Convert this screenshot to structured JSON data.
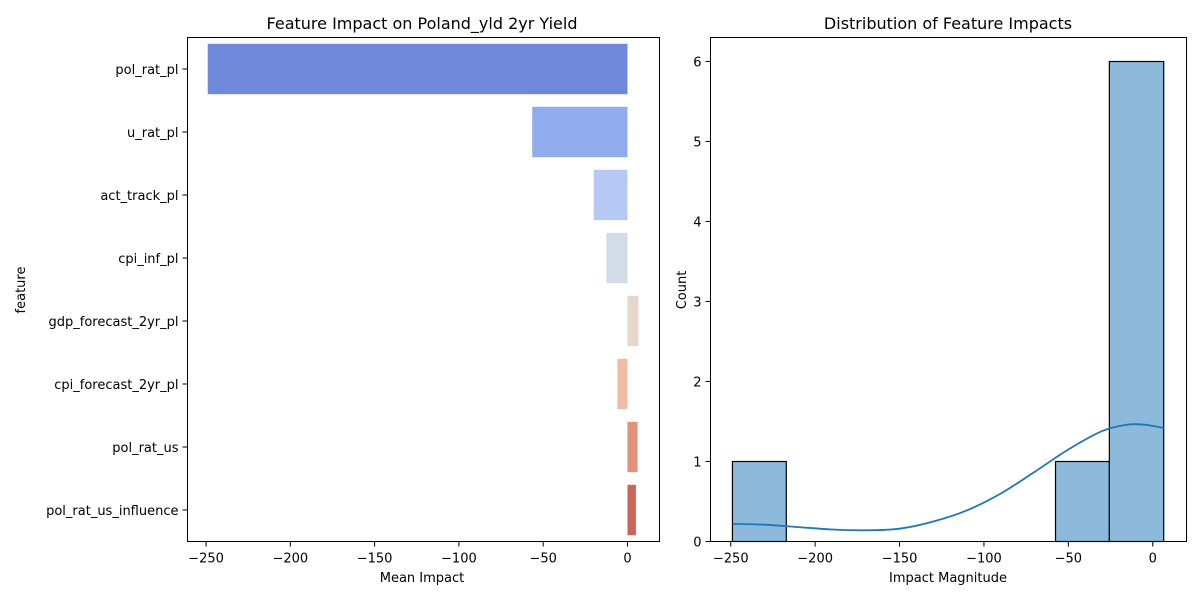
{
  "chart_data": [
    {
      "type": "bar",
      "orientation": "horizontal",
      "title": "Feature Impact on Poland_yld 2yr Yield",
      "xlabel": "Mean Impact",
      "ylabel": "feature",
      "categories": [
        "pol_rat_pl",
        "u_rat_pl",
        "act_track_pl",
        "cpi_inf_pl",
        "gdp_forecast_2yr_pl",
        "cpi_forecast_2yr_pl",
        "pol_rat_us",
        "pol_rat_us_influence"
      ],
      "values": [
        -249,
        -56.5,
        -20,
        -12.5,
        6.5,
        -6,
        6,
        5
      ],
      "colors": [
        "#6f88d9",
        "#91aced",
        "#b6c9f4",
        "#d3dbe9",
        "#e6d6cc",
        "#efbca4",
        "#e2917b",
        "#cc6459"
      ],
      "xlim": [
        -261,
        19
      ],
      "xticks": [
        -250,
        -200,
        -150,
        -100,
        -50,
        0
      ],
      "xtick_labels": [
        "−250",
        "−200",
        "−150",
        "−100",
        "−50",
        "0"
      ]
    },
    {
      "type": "histogram",
      "title": "Distribution of Feature Impacts",
      "xlabel": "Impact Magnitude",
      "ylabel": "Count",
      "bins": [
        {
          "x0": -249,
          "x1": -217.1,
          "count": 1
        },
        {
          "x0": -217.1,
          "x1": -185.2,
          "count": 0
        },
        {
          "x0": -185.2,
          "x1": -153.3,
          "count": 0
        },
        {
          "x0": -153.3,
          "x1": -121.4,
          "count": 0
        },
        {
          "x0": -121.4,
          "x1": -89.5,
          "count": 0
        },
        {
          "x0": -89.5,
          "x1": -57.6,
          "count": 0
        },
        {
          "x0": -57.6,
          "x1": -25.7,
          "count": 1
        },
        {
          "x0": -25.7,
          "x1": 6.5,
          "count": 6
        }
      ],
      "bar_color": "#8db9da",
      "kde": {
        "color": "#1f77b4",
        "x": [
          -249,
          -230,
          -210,
          -190,
          -170,
          -150,
          -130,
          -110,
          -90,
          -70,
          -50,
          -30,
          -15,
          -5,
          6.5
        ],
        "y": [
          0.22,
          0.21,
          0.18,
          0.15,
          0.14,
          0.16,
          0.25,
          0.39,
          0.6,
          0.87,
          1.15,
          1.38,
          1.46,
          1.46,
          1.42
        ]
      },
      "xlim": [
        -262,
        20
      ],
      "ylim": [
        0,
        6.3
      ],
      "xticks": [
        -250,
        -200,
        -150,
        -100,
        -50,
        0
      ],
      "xtick_labels": [
        "−250",
        "−200",
        "−150",
        "−100",
        "−50",
        "0"
      ],
      "yticks": [
        0,
        1,
        2,
        3,
        4,
        5,
        6
      ],
      "ytick_labels": [
        "0",
        "1",
        "2",
        "3",
        "4",
        "5",
        "6"
      ]
    }
  ]
}
